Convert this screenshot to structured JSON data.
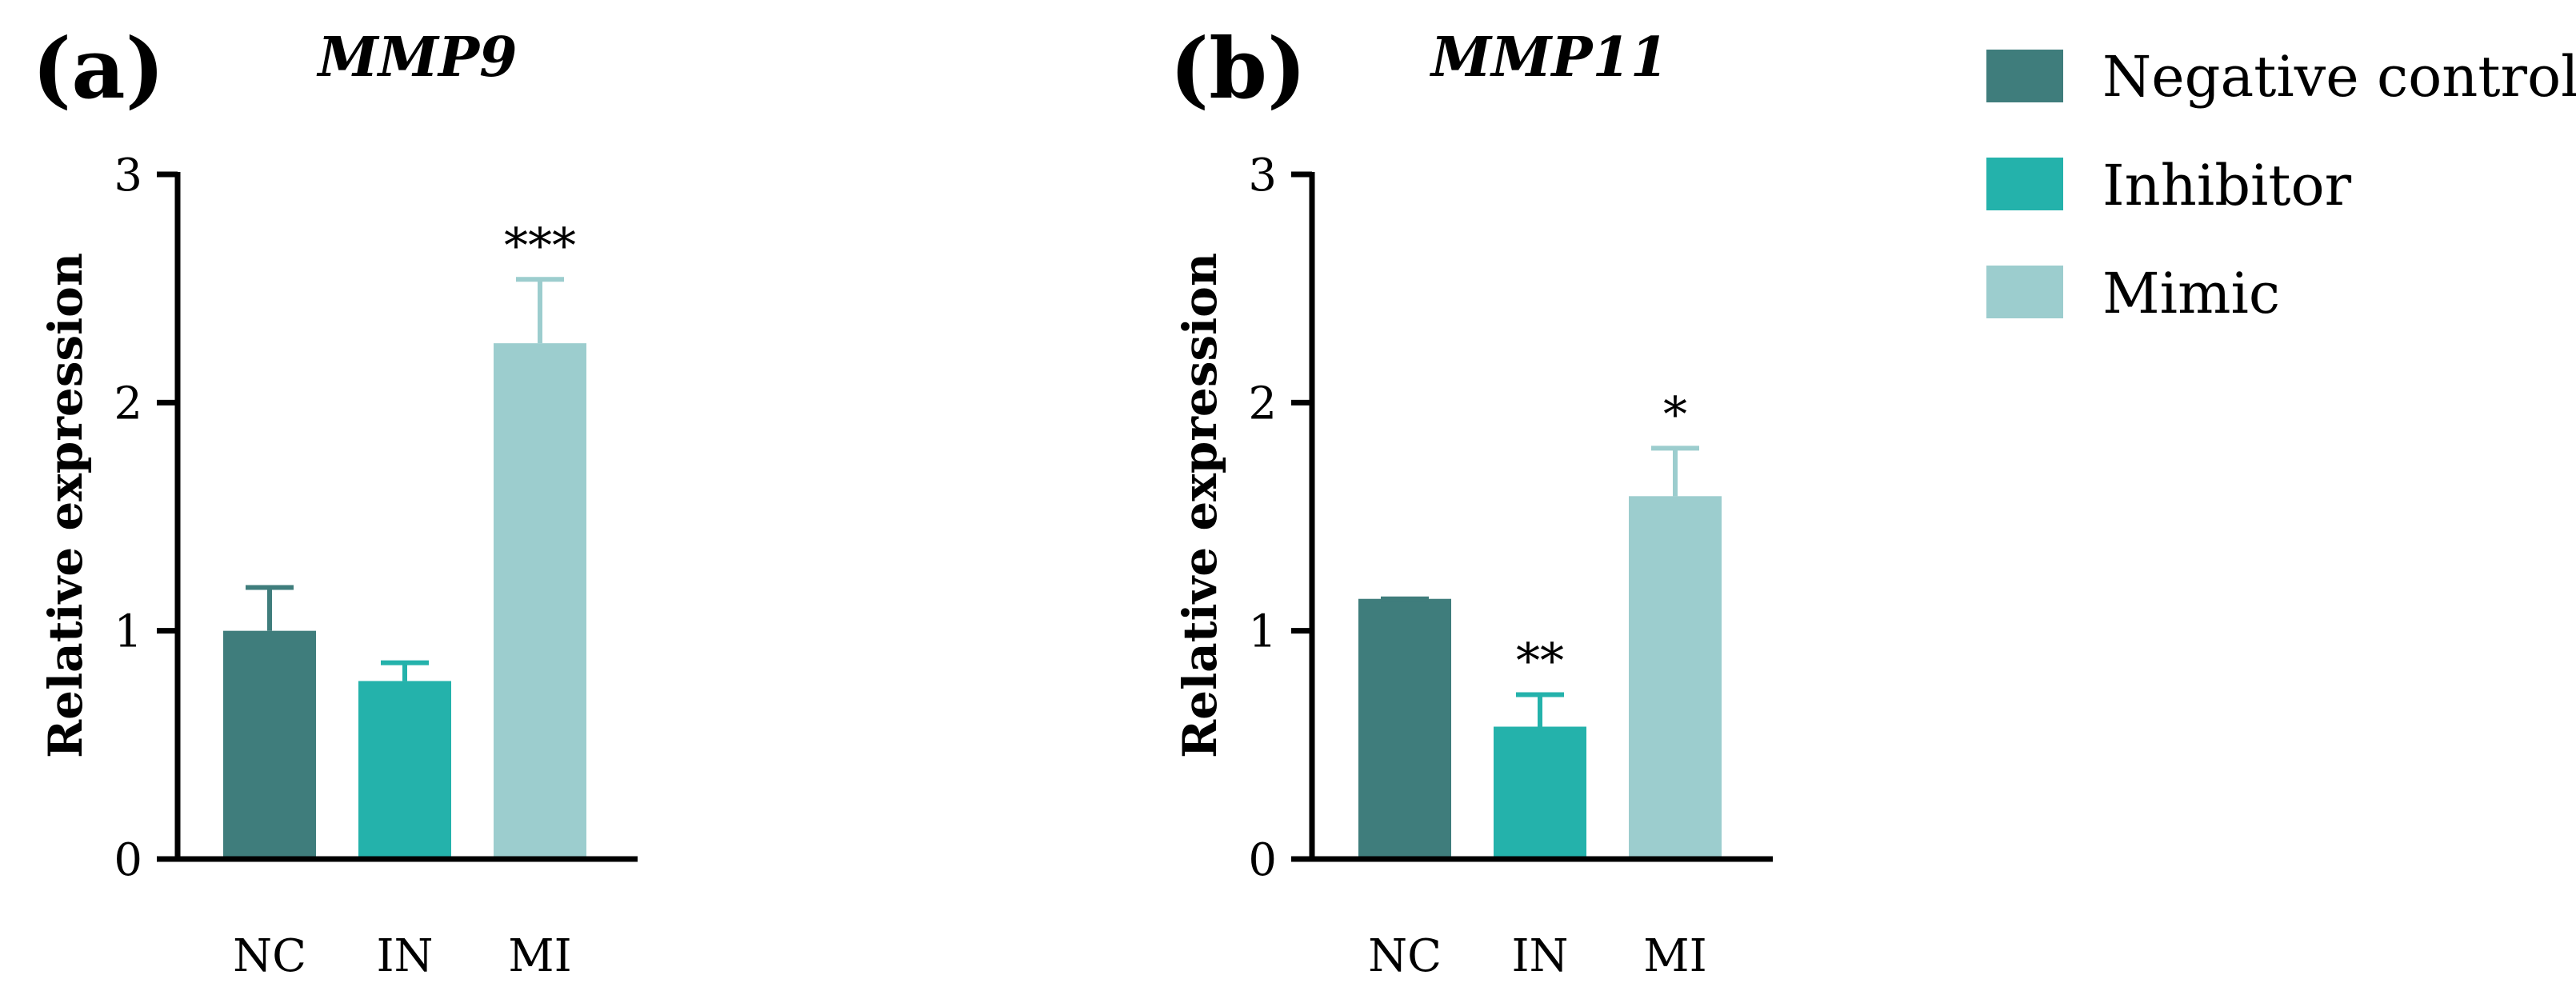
{
  "chart_data": [
    {
      "panel": "(a)",
      "type": "bar",
      "title": "MMP9",
      "ylabel": "Relative expression",
      "xlabel": "",
      "ylim": [
        0,
        3
      ],
      "yticks": [
        "0",
        "1",
        "2",
        "3"
      ],
      "categories": [
        "NC",
        "IN",
        "MI"
      ],
      "values": [
        1.0,
        0.78,
        2.26
      ],
      "errors": [
        0.19,
        0.08,
        0.28
      ],
      "significance": [
        "",
        "",
        "***"
      ]
    },
    {
      "panel": "(b)",
      "type": "bar",
      "title": "MMP11",
      "ylabel": "Relative expression",
      "xlabel": "",
      "ylim": [
        0,
        3
      ],
      "yticks": [
        "0",
        "1",
        "2",
        "3"
      ],
      "categories": [
        "NC",
        "IN",
        "MI"
      ],
      "values": [
        1.14,
        0.58,
        1.59
      ],
      "errors": [
        0.0,
        0.14,
        0.21
      ],
      "significance": [
        "",
        "**",
        "*"
      ]
    }
  ],
  "legend": {
    "position": "top-right",
    "items": [
      {
        "label": "Negative control",
        "color": "#3f7d7c"
      },
      {
        "label": "Inhibitor",
        "color": "#24b2ab"
      },
      {
        "label": "Mimic",
        "color": "#9ccdce"
      }
    ]
  }
}
